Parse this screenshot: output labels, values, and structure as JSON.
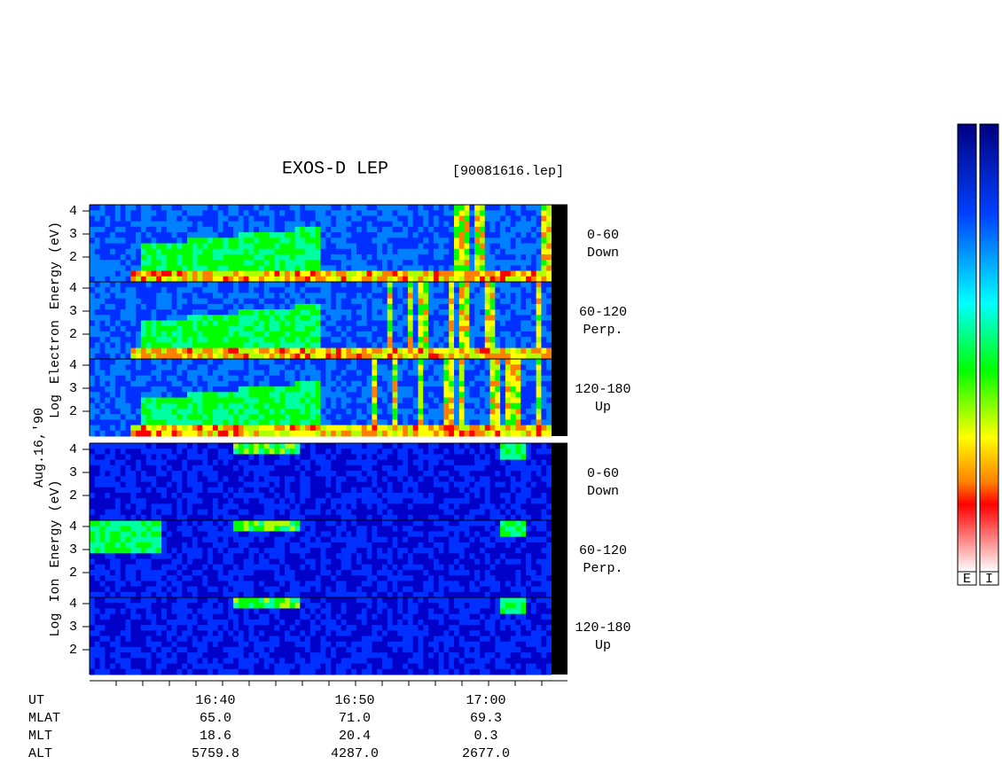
{
  "header": {
    "title": "EXOS-D LEP",
    "file": "[90081616.lep]"
  },
  "date": "Aug.16,'90",
  "groups": [
    {
      "axis_label": [
        "Log",
        "Electron",
        "Energy (eV)"
      ],
      "panels": [
        {
          "ticks": [
            "4",
            "3",
            "2"
          ],
          "pitch": "0-60",
          "direction": "Down"
        },
        {
          "ticks": [
            "4",
            "3",
            "2"
          ],
          "pitch": "60-120",
          "direction": "Perp."
        },
        {
          "ticks": [
            "4",
            "3",
            "2"
          ],
          "pitch": "120-180",
          "direction": "Up"
        }
      ]
    },
    {
      "axis_label": [
        "Log",
        "Ion",
        "Energy (eV)"
      ],
      "panels": [
        {
          "ticks": [
            "4",
            "3",
            "2"
          ],
          "pitch": "0-60",
          "direction": "Down"
        },
        {
          "ticks": [
            "4",
            "3",
            "2"
          ],
          "pitch": "60-120",
          "direction": "Perp."
        },
        {
          "ticks": [
            "4",
            "3",
            "2"
          ],
          "pitch": "120-180",
          "direction": "Up"
        }
      ]
    }
  ],
  "time_axis": [
    {
      "label": "UT",
      "values": [
        "16:40",
        "16:50",
        "17:00"
      ]
    },
    {
      "label": "MLAT",
      "values": [
        "65.0",
        "71.0",
        "69.3"
      ]
    },
    {
      "label": "MLT",
      "values": [
        "18.6",
        "20.4",
        "0.3"
      ]
    },
    {
      "label": "ALT",
      "values": [
        "5759.8",
        "4287.0",
        "2677.0"
      ]
    }
  ],
  "colorbars": [
    "E",
    "I"
  ]
}
